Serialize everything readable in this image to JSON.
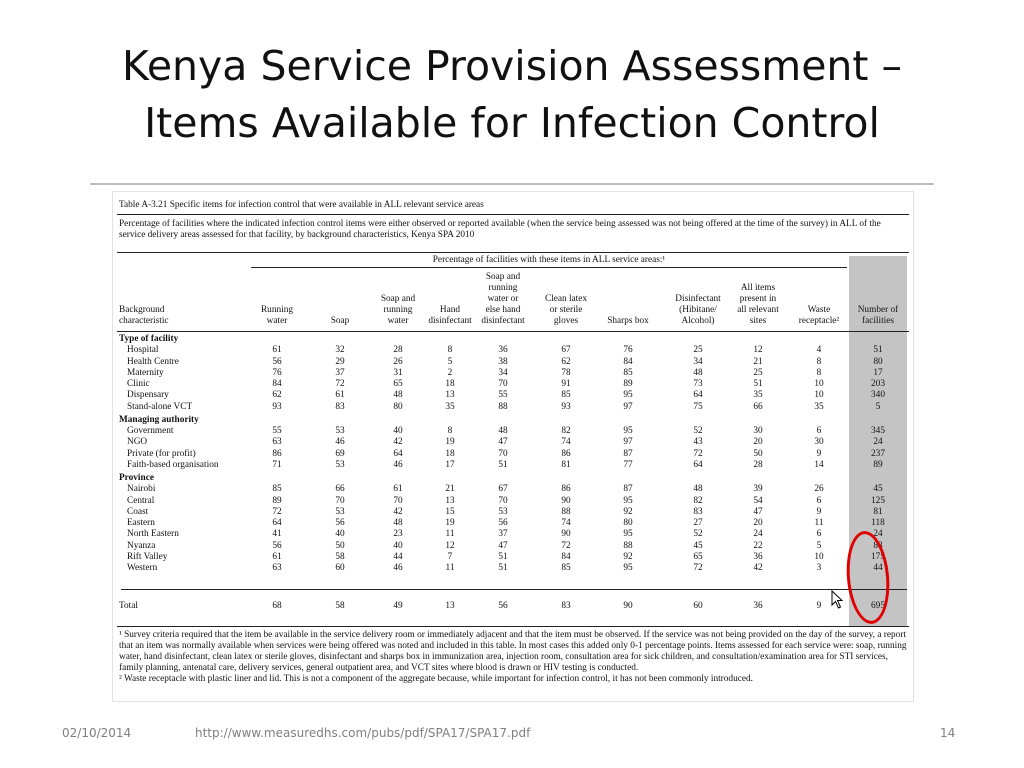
{
  "slide": {
    "title_line1": "Kenya Service Provision Assessment –",
    "title_line2": "Items Available for Infection Control"
  },
  "table": {
    "caption": "Table A-3.21  Specific items for infection control that were available in ALL relevant service areas",
    "description": "Percentage of facilities where the indicated infection control items were either observed or reported available (when the service being assessed was not being offered at the time of the survey) in ALL of the service delivery areas assessed for that facility, by background characteristics, Kenya SPA 2010",
    "span_header": "Percentage of facilities with these items in ALL service areas:¹",
    "columns": [
      "Background\ncharacteristic",
      "Running\nwater",
      "Soap",
      "Soap and\nrunning\nwater",
      "Hand\ndisinfectant",
      "Soap and\nrunning\nwater or\nelse hand\ndisinfectant",
      "Clean latex\nor sterile\ngloves",
      "Sharps box",
      "Disinfectant\n(Hibitane/\nAlcohol)",
      "All items\npresent in\nall relevant\nsites",
      "Waste\nreceptacle²",
      "Number of\nfacilities"
    ],
    "sections": [
      {
        "title": "Type of facility",
        "rows": [
          [
            "Hospital",
            "61",
            "32",
            "28",
            "8",
            "36",
            "67",
            "76",
            "25",
            "12",
            "4",
            "51"
          ],
          [
            "Health Centre",
            "56",
            "29",
            "26",
            "5",
            "38",
            "62",
            "84",
            "34",
            "21",
            "8",
            "80"
          ],
          [
            "Maternity",
            "76",
            "37",
            "31",
            "2",
            "34",
            "78",
            "85",
            "48",
            "25",
            "8",
            "17"
          ],
          [
            "Clinic",
            "84",
            "72",
            "65",
            "18",
            "70",
            "91",
            "89",
            "73",
            "51",
            "10",
            "203"
          ],
          [
            "Dispensary",
            "62",
            "61",
            "48",
            "13",
            "55",
            "85",
            "95",
            "64",
            "35",
            "10",
            "340"
          ],
          [
            "Stand-alone VCT",
            "93",
            "83",
            "80",
            "35",
            "88",
            "93",
            "97",
            "75",
            "66",
            "35",
            "5"
          ]
        ]
      },
      {
        "title": "Managing authority",
        "rows": [
          [
            "Government",
            "55",
            "53",
            "40",
            "8",
            "48",
            "82",
            "95",
            "52",
            "30",
            "6",
            "345"
          ],
          [
            "NGO",
            "63",
            "46",
            "42",
            "19",
            "47",
            "74",
            "97",
            "43",
            "20",
            "30",
            "24"
          ],
          [
            "Private (for profit)",
            "86",
            "69",
            "64",
            "18",
            "70",
            "86",
            "87",
            "72",
            "50",
            "9",
            "237"
          ],
          [
            "Faith-based organisation",
            "71",
            "53",
            "46",
            "17",
            "51",
            "81",
            "77",
            "64",
            "28",
            "14",
            "89"
          ]
        ]
      },
      {
        "title": "Province",
        "rows": [
          [
            "Nairobi",
            "85",
            "66",
            "61",
            "21",
            "67",
            "86",
            "87",
            "48",
            "39",
            "26",
            "45"
          ],
          [
            "Central",
            "89",
            "70",
            "70",
            "13",
            "70",
            "90",
            "95",
            "82",
            "54",
            "6",
            "125"
          ],
          [
            "Coast",
            "72",
            "53",
            "42",
            "15",
            "53",
            "88",
            "92",
            "83",
            "47",
            "9",
            "81"
          ],
          [
            "Eastern",
            "64",
            "56",
            "48",
            "19",
            "56",
            "74",
            "80",
            "27",
            "20",
            "11",
            "118"
          ],
          [
            "North Eastern",
            "41",
            "40",
            "23",
            "11",
            "37",
            "90",
            "95",
            "52",
            "24",
            "6",
            "24"
          ],
          [
            "Nyanza",
            "56",
            "50",
            "40",
            "12",
            "47",
            "72",
            "88",
            "45",
            "22",
            "5",
            "83"
          ],
          [
            "Rift Valley",
            "61",
            "58",
            "44",
            "7",
            "51",
            "84",
            "92",
            "65",
            "36",
            "10",
            "175"
          ],
          [
            "Western",
            "63",
            "60",
            "46",
            "11",
            "51",
            "85",
            "95",
            "72",
            "42",
            "3",
            "44"
          ]
        ]
      }
    ],
    "total_row": [
      "Total",
      "68",
      "58",
      "49",
      "13",
      "56",
      "83",
      "90",
      "60",
      "36",
      "9",
      "695"
    ],
    "footnote1": "¹ Survey criteria required that the item be available in the service delivery room or immediately adjacent and that the item must be observed. If the service was not being provided on the day of the survey, a report that an item was normally available when services were being offered was noted and included in this table. In most cases this added only 0-1 percentage points. Items assessed for each service were: soap, running water, hand disinfectant, clean latex or sterile gloves, disinfectant and sharps box in immunization area, injection room, consultation area for sick children, and consultation/examination area for STI services, family planning, antenatal care, delivery services, general outpatient area, and VCT sites where blood is drawn or HIV testing is conducted.",
    "footnote2": "² Waste receptacle with plastic liner and lid. This is not a component of the aggregate because, while important for infection control, it has not been commonly introduced."
  },
  "footer": {
    "date": "02/10/2014",
    "url": "http://www.measuredhs.com/pubs/pdf/SPA17/SPA17.pdf",
    "page": "14"
  },
  "annotation": {
    "color": "#e00000",
    "icon": "cursor-arrow-icon"
  }
}
